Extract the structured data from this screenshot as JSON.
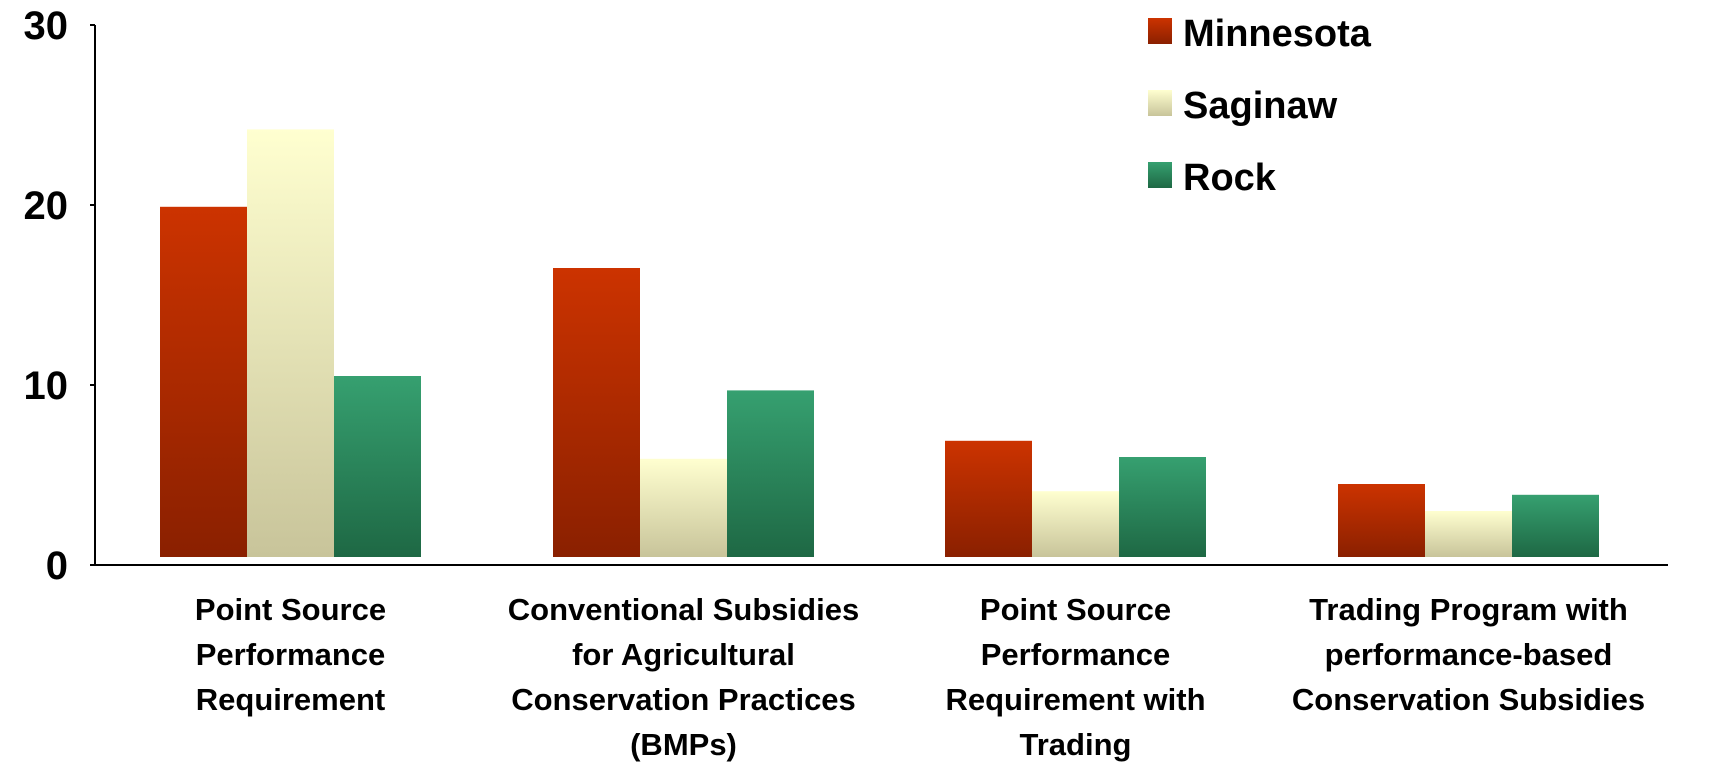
{
  "chart_data": {
    "type": "bar",
    "categories": [
      [
        "Point Source",
        "Performance",
        "Requirement"
      ],
      [
        "Conventional Subsidies",
        "for Agricultural",
        "Conservation Practices",
        "(BMPs)"
      ],
      [
        "Point Source",
        "Performance",
        "Requirement with",
        "Trading"
      ],
      [
        "Trading Program with",
        "performance-based",
        "Conservation Subsidies"
      ]
    ],
    "series": [
      {
        "name": "Minnesota",
        "values": [
          19.9,
          16.5,
          6.9,
          4.5
        ],
        "color_top": "#cc3300",
        "color_bottom": "#8a2000"
      },
      {
        "name": "Saginaw",
        "values": [
          24.2,
          5.9,
          4.1,
          3.0
        ],
        "color_top": "#ffffd0",
        "color_bottom": "#c8c49a"
      },
      {
        "name": "Rock",
        "values": [
          10.5,
          9.7,
          6.0,
          3.9
        ],
        "color_top": "#36a070",
        "color_bottom": "#1e6844"
      }
    ],
    "yticks": [
      0,
      10,
      20,
      30
    ],
    "ylim": [
      0,
      30
    ],
    "title": "",
    "xlabel": "",
    "ylabel": "",
    "grid": false,
    "legend_position": "top-right"
  }
}
